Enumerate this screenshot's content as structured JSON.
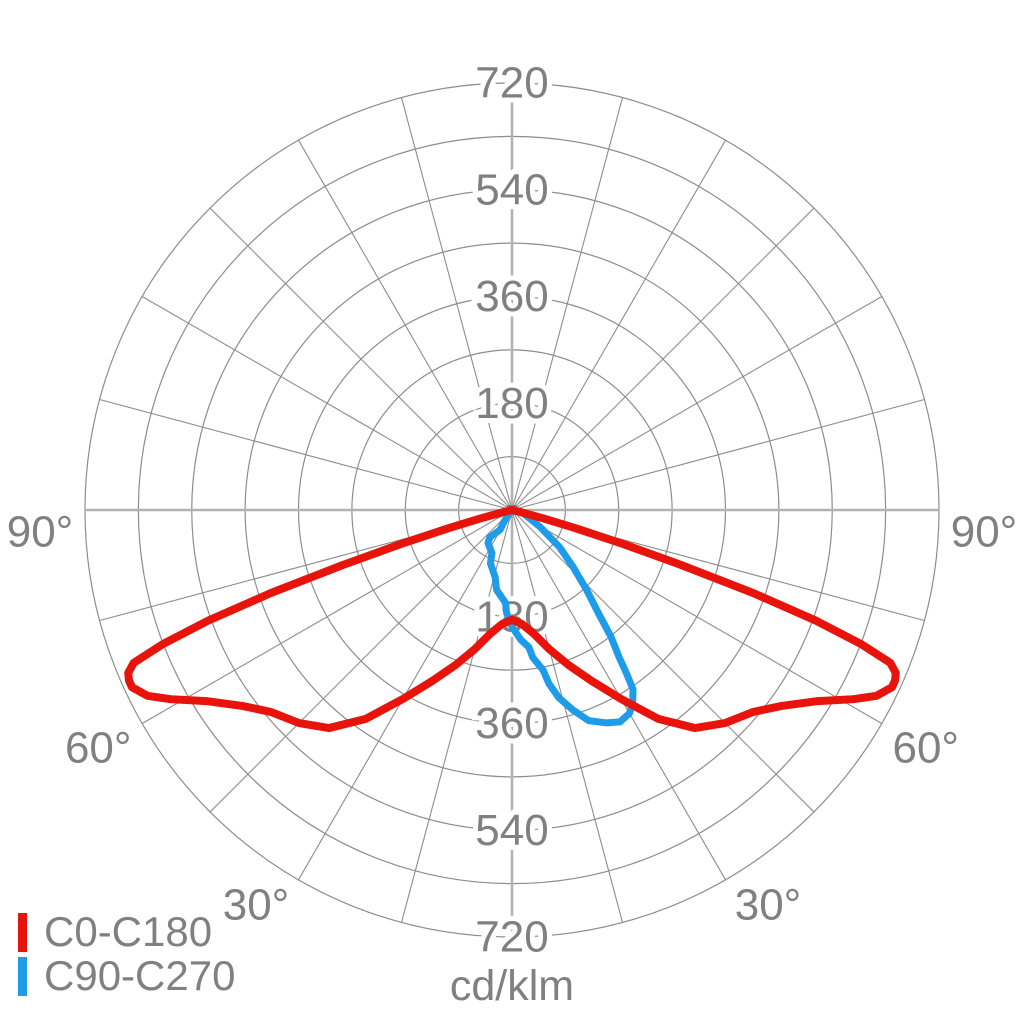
{
  "chart_data": {
    "type": "polar",
    "subtype": "photometric-luminous-intensity-distribution",
    "unit": "cd/klm",
    "max_value": 720,
    "ring_step": 90,
    "rings": [
      90,
      180,
      270,
      360,
      450,
      540,
      630,
      720
    ],
    "ring_labels": [
      "180",
      "360",
      "540",
      "720"
    ],
    "ring_label_values": [
      180,
      360,
      540,
      720
    ],
    "angle_step_deg": 15,
    "angle_labels": [
      {
        "text": "30°",
        "gamma": 30
      },
      {
        "text": "60°",
        "gamma": 60
      },
      {
        "text": "90°",
        "gamma": 90
      }
    ],
    "layout": {
      "gamma_zero": "bottom",
      "angle_labels_both_sides": true,
      "legend_position": "bottom-left",
      "grid": true
    },
    "series": [
      {
        "name": "C0-C180",
        "color": "#e8130b",
        "symmetric": true,
        "points_gamma_value": [
          [
            0,
            185
          ],
          [
            5,
            193
          ],
          [
            10,
            212
          ],
          [
            15,
            243
          ],
          [
            20,
            278
          ],
          [
            25,
            318
          ],
          [
            30,
            368
          ],
          [
            35,
            430
          ],
          [
            40,
            480
          ],
          [
            45,
            508
          ],
          [
            50,
            530
          ],
          [
            54,
            562
          ],
          [
            58,
            608
          ],
          [
            61,
            658
          ],
          [
            63,
            690
          ],
          [
            65,
            707
          ],
          [
            66,
            707
          ],
          [
            67,
            703
          ],
          [
            68,
            688
          ],
          [
            69,
            630
          ],
          [
            70,
            545
          ],
          [
            71,
            430
          ],
          [
            72,
            300
          ],
          [
            73,
            195
          ],
          [
            74,
            110
          ],
          [
            75,
            55
          ],
          [
            76,
            15
          ],
          [
            77,
            0
          ]
        ]
      },
      {
        "name": "C90-C270",
        "color": "#1f9ce9",
        "symmetric": false,
        "points_gamma_value": [
          [
            -35,
            0
          ],
          [
            -35,
            21
          ],
          [
            -31,
            39
          ],
          [
            -39,
            59
          ],
          [
            -36,
            69
          ],
          [
            -25,
            80
          ],
          [
            -22,
            97
          ],
          [
            -14,
            117
          ],
          [
            -11,
            137
          ],
          [
            -4,
            157
          ],
          [
            -3,
            174
          ],
          [
            0,
            197
          ],
          [
            4,
            220
          ],
          [
            7,
            233
          ],
          [
            8,
            251
          ],
          [
            11,
            275
          ],
          [
            12,
            299
          ],
          [
            14,
            326
          ],
          [
            17,
            353
          ],
          [
            20,
            378
          ],
          [
            24,
            393
          ],
          [
            27,
            401
          ],
          [
            30,
            396
          ],
          [
            32,
            384
          ],
          [
            34,
            365
          ],
          [
            35,
            337
          ],
          [
            36,
            308
          ],
          [
            38,
            271
          ],
          [
            40,
            226
          ],
          [
            43,
            185
          ],
          [
            47,
            141
          ],
          [
            52,
            102
          ],
          [
            59,
            55
          ],
          [
            75,
            19
          ],
          [
            80,
            0
          ]
        ]
      }
    ]
  },
  "colors": {
    "background": "#ffffff",
    "grid": "#8d8d8d",
    "axis": "#b2b2b2",
    "hub": "#7b7b7b",
    "text": "#808080"
  }
}
